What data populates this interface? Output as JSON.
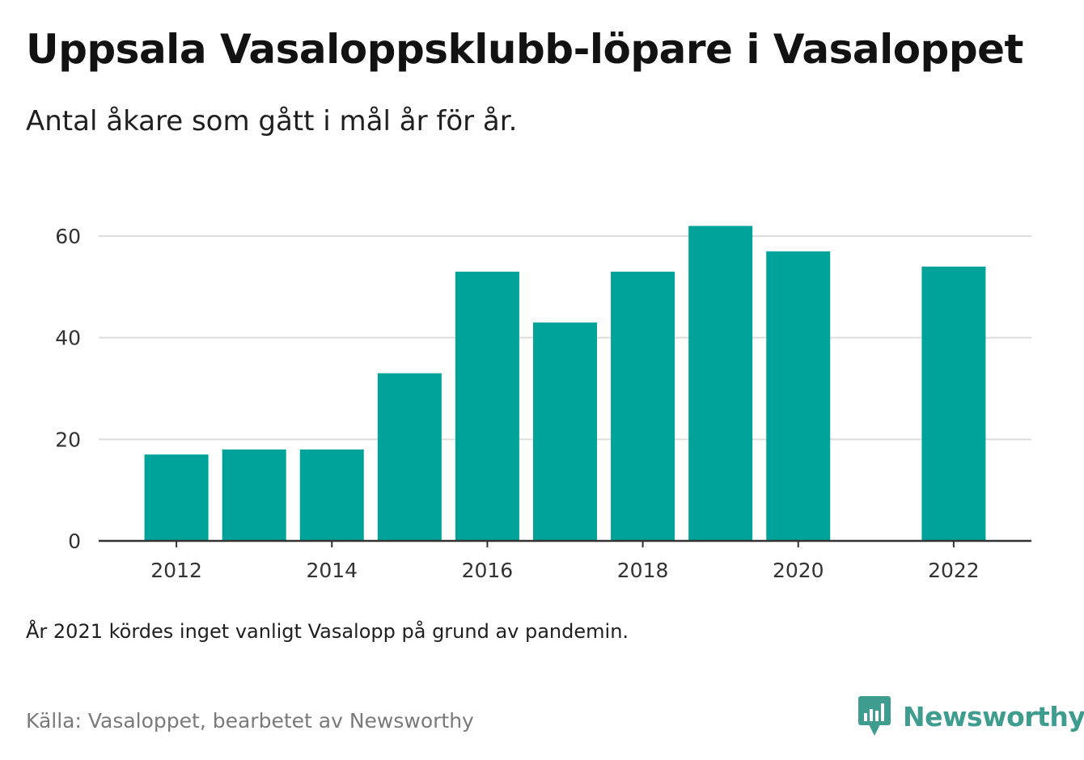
{
  "header": {
    "title": "Uppsala Vasaloppsklubb-löpare i Vasaloppet",
    "subtitle": "Antal åkare som gått i mål år för år."
  },
  "footer": {
    "note": "År 2021 kördes inget vanligt Vasalopp på grund av pandemin.",
    "source": "Källa: Vasaloppet, bearbetet av Newsworthy",
    "brand": "Newsworthy",
    "brand_icon": "newsworthy-logo-icon"
  },
  "colors": {
    "bar": "#00a39a",
    "grid": "#dddddd",
    "axis": "#333333",
    "brand": "#3f9d8f"
  },
  "chart_data": {
    "type": "bar",
    "title": "Uppsala Vasaloppsklubb-löpare i Vasaloppet",
    "subtitle": "Antal åkare som gått i mål år för år.",
    "xlabel": "",
    "ylabel": "",
    "categories": [
      "2012",
      "2013",
      "2014",
      "2015",
      "2016",
      "2017",
      "2018",
      "2019",
      "2020",
      "2022"
    ],
    "x": [
      2012,
      2013,
      2014,
      2015,
      2016,
      2017,
      2018,
      2019,
      2020,
      2022
    ],
    "values": [
      17,
      18,
      18,
      33,
      53,
      43,
      53,
      62,
      57,
      54
    ],
    "xlim": [
      2011,
      2023
    ],
    "ylim": [
      0,
      60
    ],
    "x_ticks": [
      "2012",
      "2014",
      "2016",
      "2018",
      "2020",
      "2022"
    ],
    "y_ticks": [
      "0",
      "20",
      "40",
      "60"
    ],
    "grid": "horizontal",
    "legend": "none"
  }
}
